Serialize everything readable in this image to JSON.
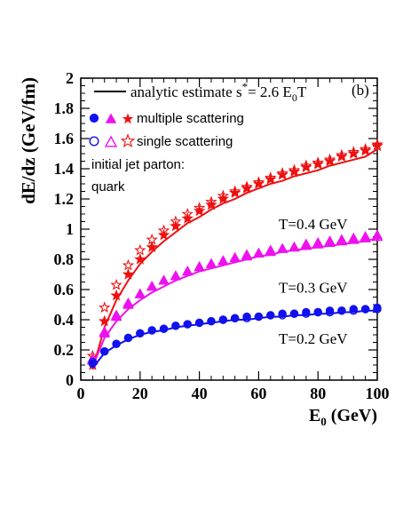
{
  "chart_data": {
    "type": "scatter",
    "panel_label": "(b)",
    "ylabel": "dE/dz (GeV/fm)",
    "xlabel": "E",
    "xlabel_sub": "0",
    "xlabel_unit": " (GeV)",
    "xlim": [
      0,
      100
    ],
    "ylim": [
      0,
      2
    ],
    "xticks": [
      0,
      20,
      40,
      60,
      80,
      100
    ],
    "yticks": [
      0,
      0.2,
      0.4,
      0.6,
      0.8,
      1,
      1.2,
      1.4,
      1.6,
      1.8,
      2
    ],
    "ytick_labels": [
      "0",
      "0.2",
      "0.4",
      "0.6",
      "0.8",
      "1",
      "1.2",
      "1.4",
      "1.6",
      "1.8",
      "2"
    ],
    "legend": {
      "position": "top-left",
      "line_label": "analytic estimate s",
      "line_label_sup": "*",
      "line_label_rest": "= 2.6 E",
      "line_label_sub": "0",
      "line_label_end": "T",
      "multiple_label": "multiple scattering",
      "single_label": "single scattering",
      "note_line1": "initial jet parton:",
      "note_line2": "quark"
    },
    "annotations": [
      "T=0.4 GeV",
      "T=0.3 GeV",
      "T=0.2 GeV"
    ],
    "series": [
      {
        "name": "T=0.4 GeV",
        "color": "#ee1111",
        "marker": "star",
        "x": [
          4,
          8,
          12,
          16,
          20,
          24,
          28,
          32,
          36,
          40,
          44,
          48,
          52,
          56,
          60,
          64,
          68,
          72,
          76,
          80,
          84,
          88,
          92,
          96,
          100
        ],
        "multiple": [
          0.1,
          0.39,
          0.56,
          0.7,
          0.8,
          0.88,
          0.96,
          1.02,
          1.07,
          1.12,
          1.16,
          1.2,
          1.24,
          1.27,
          1.3,
          1.33,
          1.36,
          1.38,
          1.41,
          1.43,
          1.45,
          1.48,
          1.5,
          1.52,
          1.56
        ],
        "single": [
          0.16,
          0.48,
          0.63,
          0.76,
          0.86,
          0.93,
          0.99,
          1.05,
          1.1,
          1.14,
          1.18,
          1.22,
          1.25,
          1.28,
          1.31,
          1.34,
          1.37,
          1.39,
          1.42,
          1.44,
          1.46,
          1.49,
          1.51,
          1.53,
          1.55
        ],
        "curve": [
          0.07,
          0.35,
          0.53,
          0.66,
          0.77,
          0.85,
          0.92,
          0.98,
          1.04,
          1.08,
          1.13,
          1.17,
          1.2,
          1.24,
          1.27,
          1.3,
          1.32,
          1.35,
          1.37,
          1.39,
          1.42,
          1.44,
          1.46,
          1.48,
          1.53
        ]
      },
      {
        "name": "T=0.3 GeV",
        "color": "#ee11ee",
        "marker": "triangle",
        "x": [
          4,
          8,
          12,
          16,
          20,
          24,
          28,
          32,
          36,
          40,
          44,
          48,
          52,
          56,
          60,
          64,
          68,
          72,
          76,
          80,
          84,
          88,
          92,
          96,
          100
        ],
        "multiple": [
          0.13,
          0.31,
          0.42,
          0.5,
          0.57,
          0.62,
          0.66,
          0.69,
          0.72,
          0.75,
          0.77,
          0.79,
          0.81,
          0.83,
          0.84,
          0.86,
          0.87,
          0.88,
          0.9,
          0.91,
          0.92,
          0.93,
          0.94,
          0.95,
          0.96
        ],
        "single": [
          0.14,
          0.32,
          0.43,
          0.51,
          0.57,
          0.62,
          0.66,
          0.69,
          0.72,
          0.75,
          0.77,
          0.79,
          0.81,
          0.82,
          0.84,
          0.85,
          0.87,
          0.88,
          0.89,
          0.9,
          0.91,
          0.92,
          0.93,
          0.94,
          0.95
        ],
        "curve": [
          0.09,
          0.28,
          0.39,
          0.47,
          0.53,
          0.58,
          0.62,
          0.66,
          0.69,
          0.72,
          0.74,
          0.76,
          0.78,
          0.8,
          0.82,
          0.83,
          0.85,
          0.86,
          0.87,
          0.88,
          0.89,
          0.9,
          0.91,
          0.92,
          0.94
        ]
      },
      {
        "name": "T=0.2 GeV",
        "color": "#1111ee",
        "marker": "circle",
        "x": [
          4,
          8,
          12,
          16,
          20,
          24,
          28,
          32,
          36,
          40,
          44,
          48,
          52,
          56,
          60,
          64,
          68,
          72,
          76,
          80,
          84,
          88,
          92,
          96,
          100
        ],
        "multiple": [
          0.11,
          0.19,
          0.24,
          0.28,
          0.31,
          0.33,
          0.34,
          0.36,
          0.37,
          0.38,
          0.39,
          0.4,
          0.41,
          0.42,
          0.42,
          0.43,
          0.44,
          0.44,
          0.45,
          0.45,
          0.46,
          0.46,
          0.47,
          0.47,
          0.48
        ],
        "single": [
          0.12,
          0.19,
          0.24,
          0.28,
          0.31,
          0.33,
          0.34,
          0.36,
          0.37,
          0.38,
          0.39,
          0.4,
          0.41,
          0.41,
          0.42,
          0.43,
          0.43,
          0.44,
          0.44,
          0.45,
          0.45,
          0.46,
          0.46,
          0.47,
          0.47
        ],
        "curve": [
          0.08,
          0.18,
          0.23,
          0.27,
          0.3,
          0.32,
          0.33,
          0.35,
          0.36,
          0.37,
          0.38,
          0.39,
          0.4,
          0.4,
          0.41,
          0.42,
          0.42,
          0.43,
          0.43,
          0.44,
          0.44,
          0.45,
          0.45,
          0.46,
          0.46
        ]
      }
    ]
  }
}
